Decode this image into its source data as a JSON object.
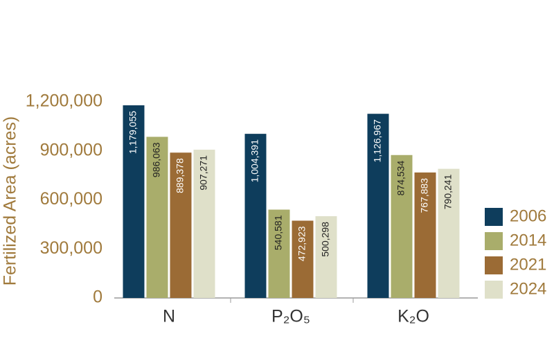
{
  "chart_data": {
    "type": "bar",
    "y_label": "Fertilized Area (acres)",
    "categories": [
      "N",
      "P₂O₅",
      "K₂O"
    ],
    "series": [
      {
        "name": "2006",
        "color": "#0e3d5c",
        "label_color": "#ffffff",
        "values": [
          1179055,
          1004391,
          1126967
        ],
        "value_labels": [
          "1,179,055",
          "1,004,391",
          "1,126,967"
        ]
      },
      {
        "name": "2014",
        "color": "#a9ad6b",
        "label_color": "#222222",
        "values": [
          986063,
          540581,
          874534
        ],
        "value_labels": [
          "986,063",
          "540,581",
          "874,534"
        ]
      },
      {
        "name": "2021",
        "color": "#9b6b35",
        "label_color": "#ffffff",
        "values": [
          889378,
          472923,
          767883
        ],
        "value_labels": [
          "889,378",
          "472,923",
          "767,883"
        ]
      },
      {
        "name": "2024",
        "color": "#dfe0c9",
        "label_color": "#222222",
        "values": [
          907271,
          500298,
          790241
        ],
        "value_labels": [
          "907,271",
          "500,298",
          "790,241"
        ]
      }
    ],
    "ylim": [
      0,
      1200000
    ],
    "yticks": [
      0,
      {
        "value": 300000,
        "label": "300,000"
      },
      {
        "value": 600000,
        "label": "600,000"
      },
      {
        "value": 900000,
        "label": "900,000"
      },
      {
        "value": 1200000,
        "label": "1,200,000"
      }
    ],
    "grid": false,
    "legend": "right"
  }
}
